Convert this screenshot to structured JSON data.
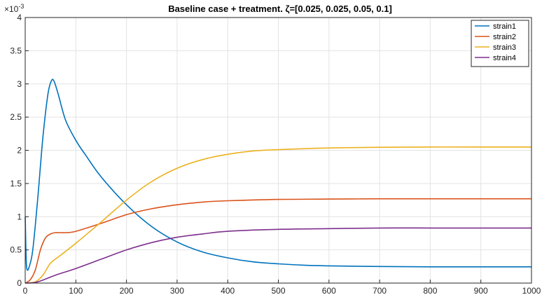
{
  "chart_data": {
    "type": "line",
    "title": "Baseline case + treatment. ζ=[0.025, 0.025, 0.05, 0.1]",
    "xlabel": "",
    "ylabel": "",
    "xlim": [
      0,
      1000
    ],
    "ylim": [
      0,
      4
    ],
    "y_exponent_label": "×10",
    "y_exponent_power": "-3",
    "xticks": [
      "0",
      "100",
      "200",
      "300",
      "400",
      "500",
      "600",
      "700",
      "800",
      "900",
      "1000"
    ],
    "yticks": [
      "0",
      "0.5",
      "1",
      "1.5",
      "2",
      "2.5",
      "3",
      "3.5",
      "4"
    ],
    "grid": true,
    "legend_position": "top-right",
    "series": [
      {
        "name": "strain1",
        "color": "#0072BD",
        "points": [
          [
            0,
            1.0
          ],
          [
            2,
            0.35
          ],
          [
            4,
            0.2
          ],
          [
            8,
            0.25
          ],
          [
            15,
            0.5
          ],
          [
            25,
            1.3
          ],
          [
            35,
            2.2
          ],
          [
            45,
            2.85
          ],
          [
            52,
            3.05
          ],
          [
            57,
            3.04
          ],
          [
            65,
            2.85
          ],
          [
            80,
            2.45
          ],
          [
            100,
            2.15
          ],
          [
            120,
            1.92
          ],
          [
            150,
            1.6
          ],
          [
            200,
            1.18
          ],
          [
            250,
            0.85
          ],
          [
            300,
            0.62
          ],
          [
            350,
            0.47
          ],
          [
            400,
            0.38
          ],
          [
            450,
            0.32
          ],
          [
            500,
            0.29
          ],
          [
            550,
            0.27
          ],
          [
            600,
            0.26
          ],
          [
            700,
            0.25
          ],
          [
            800,
            0.245
          ],
          [
            900,
            0.245
          ],
          [
            1000,
            0.245
          ]
        ]
      },
      {
        "name": "strain2",
        "color": "#D95319",
        "points": [
          [
            0,
            0
          ],
          [
            10,
            0.05
          ],
          [
            20,
            0.2
          ],
          [
            30,
            0.5
          ],
          [
            40,
            0.68
          ],
          [
            50,
            0.74
          ],
          [
            60,
            0.76
          ],
          [
            80,
            0.76
          ],
          [
            100,
            0.78
          ],
          [
            150,
            0.9
          ],
          [
            200,
            1.03
          ],
          [
            250,
            1.12
          ],
          [
            300,
            1.18
          ],
          [
            350,
            1.22
          ],
          [
            400,
            1.24
          ],
          [
            500,
            1.26
          ],
          [
            600,
            1.265
          ],
          [
            700,
            1.27
          ],
          [
            800,
            1.27
          ],
          [
            900,
            1.27
          ],
          [
            1000,
            1.27
          ]
        ]
      },
      {
        "name": "strain3",
        "color": "#EDB120",
        "points": [
          [
            0,
            0
          ],
          [
            20,
            0.02
          ],
          [
            35,
            0.12
          ],
          [
            50,
            0.3
          ],
          [
            70,
            0.42
          ],
          [
            100,
            0.6
          ],
          [
            150,
            0.92
          ],
          [
            200,
            1.25
          ],
          [
            250,
            1.53
          ],
          [
            300,
            1.73
          ],
          [
            350,
            1.86
          ],
          [
            400,
            1.94
          ],
          [
            450,
            1.99
          ],
          [
            500,
            2.01
          ],
          [
            600,
            2.035
          ],
          [
            700,
            2.045
          ],
          [
            800,
            2.05
          ],
          [
            900,
            2.05
          ],
          [
            1000,
            2.05
          ]
        ]
      },
      {
        "name": "strain4",
        "color": "#7E2F8E",
        "points": [
          [
            0,
            0
          ],
          [
            20,
            0.01
          ],
          [
            40,
            0.06
          ],
          [
            60,
            0.12
          ],
          [
            100,
            0.22
          ],
          [
            150,
            0.36
          ],
          [
            200,
            0.5
          ],
          [
            250,
            0.61
          ],
          [
            300,
            0.69
          ],
          [
            350,
            0.74
          ],
          [
            400,
            0.78
          ],
          [
            500,
            0.81
          ],
          [
            600,
            0.82
          ],
          [
            700,
            0.83
          ],
          [
            800,
            0.83
          ],
          [
            900,
            0.83
          ],
          [
            1000,
            0.83
          ]
        ]
      }
    ]
  }
}
